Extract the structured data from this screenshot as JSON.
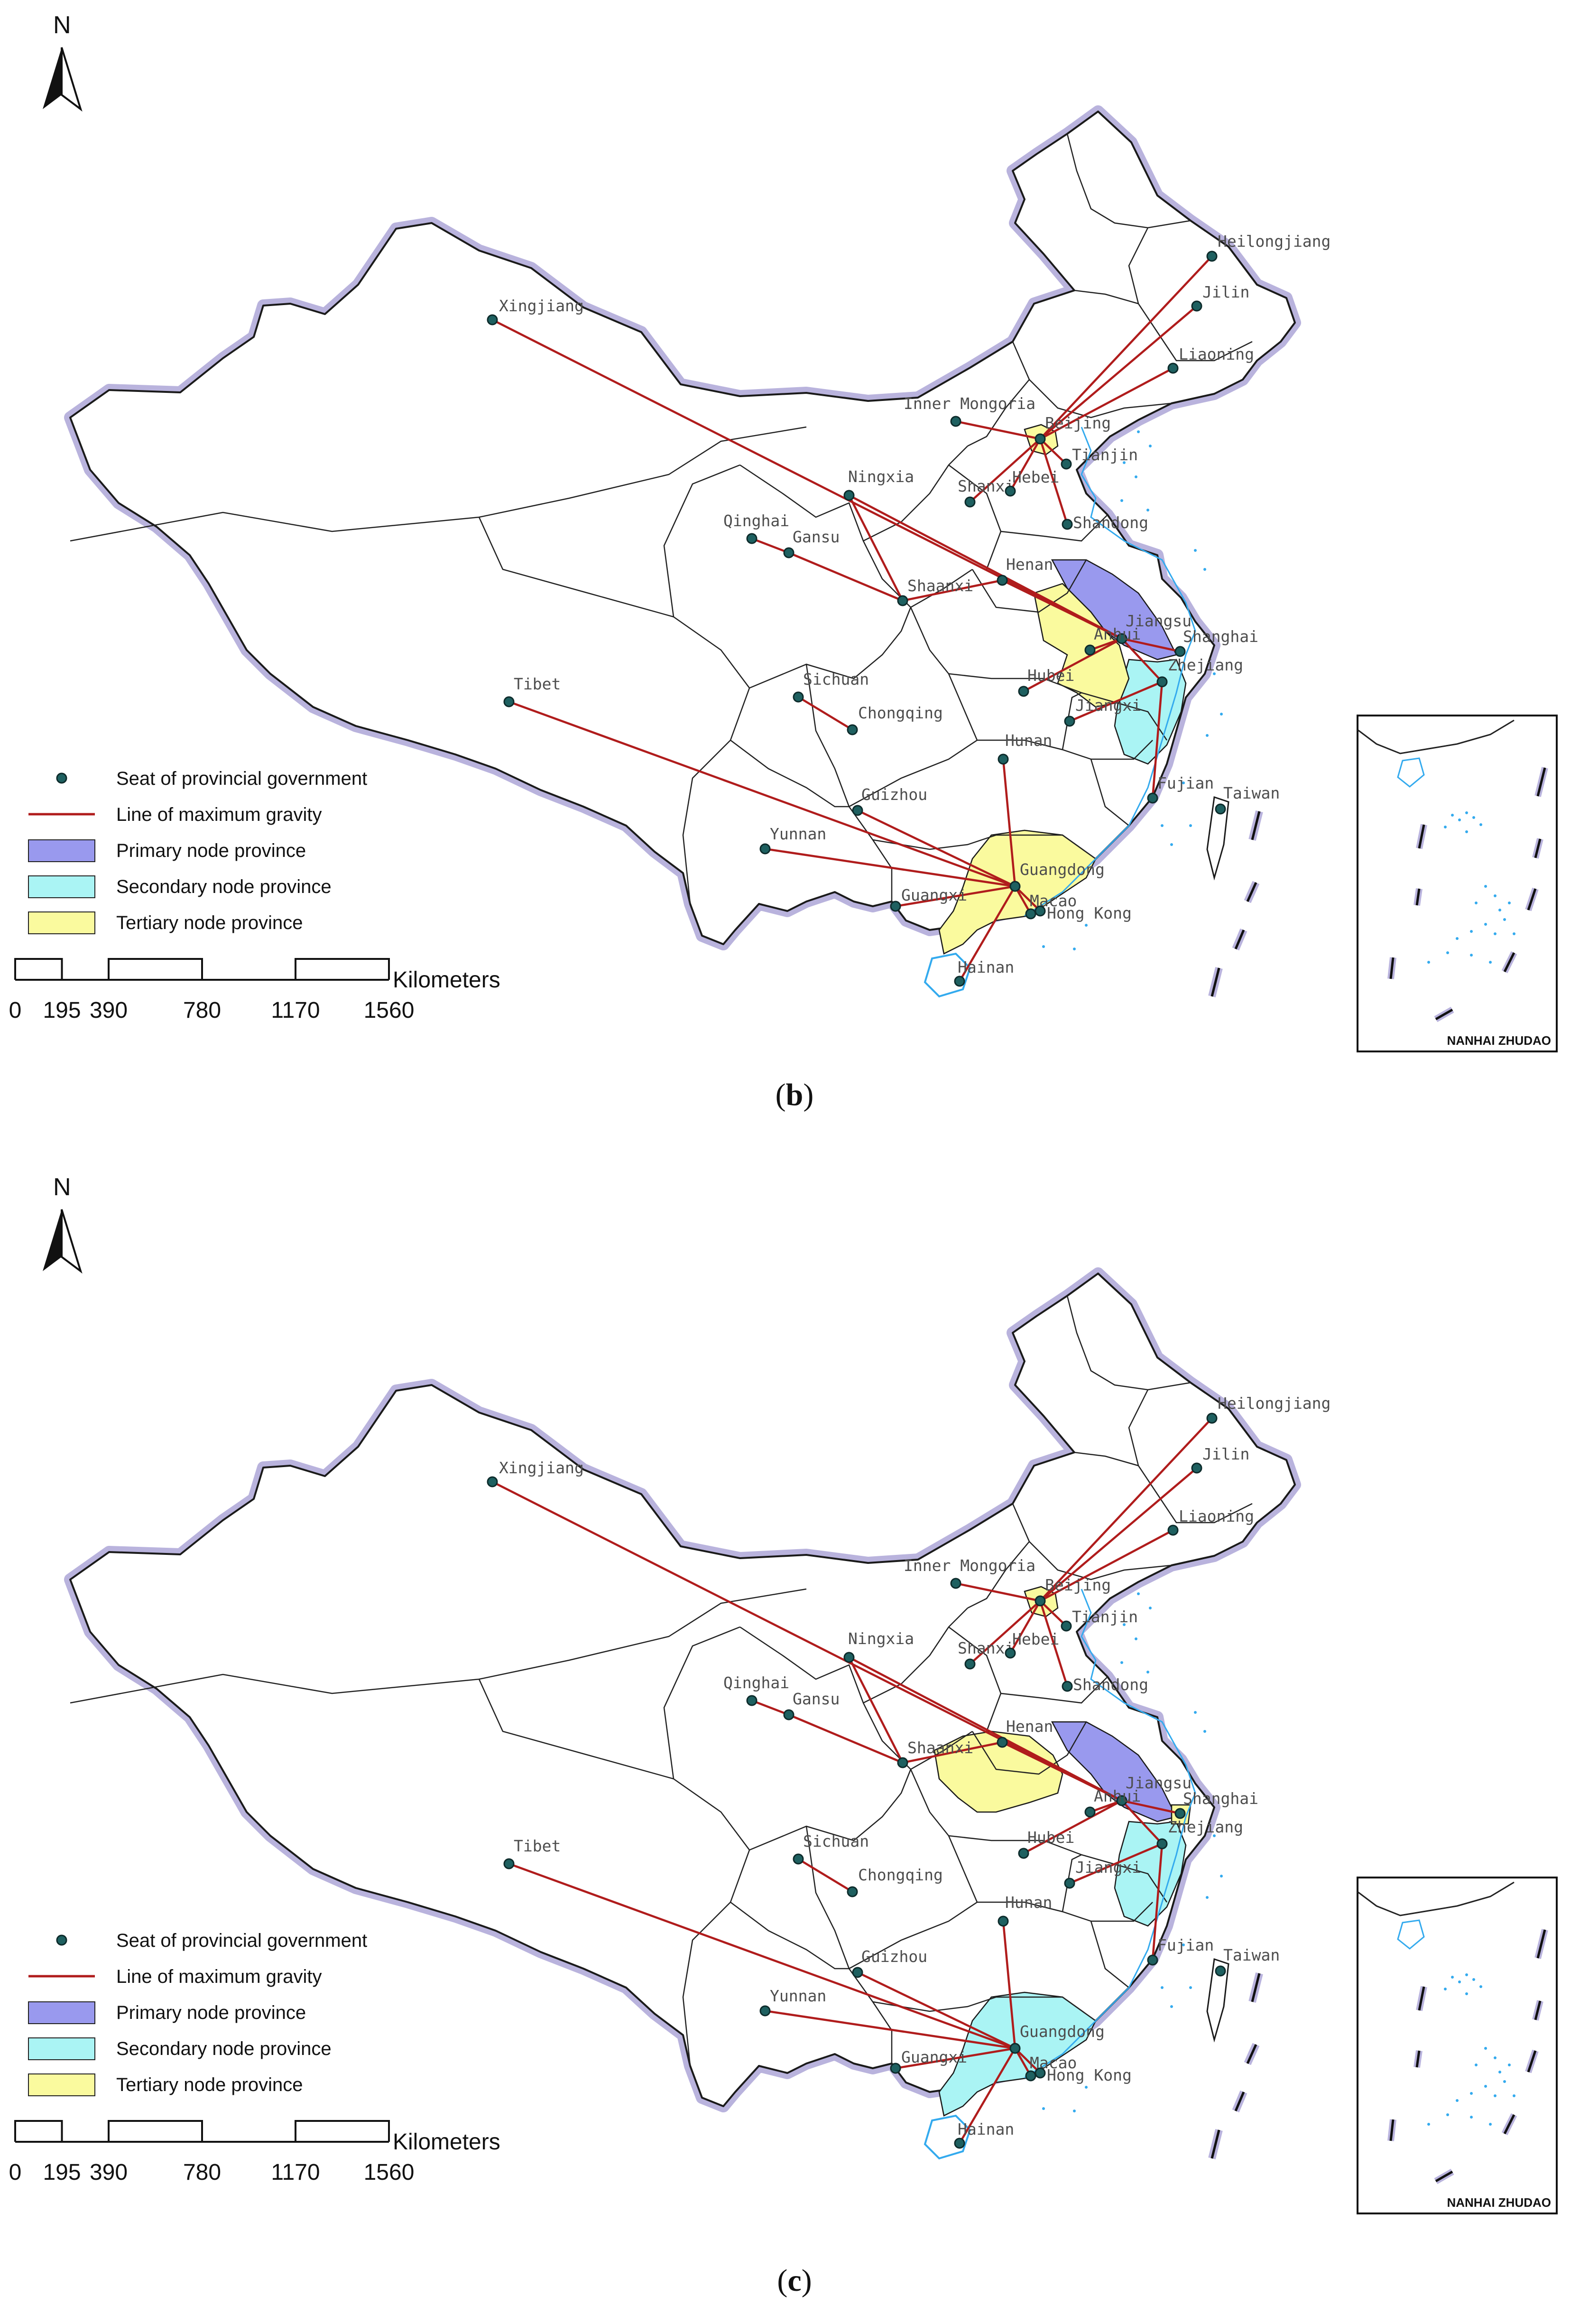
{
  "colors": {
    "primary": "#9999ee",
    "secondary": "#aaf4f4",
    "tertiary": "#fafa9e",
    "line": "#b01c1c",
    "seat": "#1e6060",
    "border_glow": "#b9b3dd",
    "water": "#33aaee"
  },
  "legend": {
    "seat": "Seat of provincial government",
    "line": "Line of maximum gravity",
    "primary": "Primary node province",
    "secondary": "Secondary node province",
    "tertiary": "Tertiary node province"
  },
  "north_label": "N",
  "scale": {
    "unit": "Kilometers",
    "ticks": [
      "0",
      "195",
      "390",
      "780",
      "1170",
      "1560"
    ]
  },
  "inset_label": "NANHAI ZHUDAO",
  "panels": [
    {
      "caption_open": "(",
      "caption_letter": "b",
      "caption_close": ")",
      "primary": [
        "Jiangsu"
      ],
      "secondary": [
        "Zhejiang"
      ],
      "tertiary": [
        "Beijing",
        "Anhui",
        "Guangdong"
      ],
      "links": [
        [
          "Heilongjiang",
          "Beijing"
        ],
        [
          "Jilin",
          "Beijing"
        ],
        [
          "Liaoning",
          "Beijing"
        ],
        [
          "Inner Mongoria",
          "Beijing"
        ],
        [
          "Tianjin",
          "Beijing"
        ],
        [
          "Hebei",
          "Beijing"
        ],
        [
          "Shanxi",
          "Beijing"
        ],
        [
          "Shandong",
          "Beijing"
        ],
        [
          "Xingjiang",
          "Jiangsu"
        ],
        [
          "Ningxia",
          "Shaanxi"
        ],
        [
          "Qinghai",
          "Gansu"
        ],
        [
          "Gansu",
          "Shaanxi"
        ],
        [
          "Shaanxi",
          "Henan"
        ],
        [
          "Henan",
          "Jiangsu"
        ],
        [
          "Anhui",
          "Jiangsu"
        ],
        [
          "Hubei",
          "Jiangsu"
        ],
        [
          "Shanghai",
          "Jiangsu"
        ],
        [
          "Zhejiang",
          "Jiangsu"
        ],
        [
          "Jiangxi",
          "Zhejiang"
        ],
        [
          "Fujian",
          "Zhejiang"
        ],
        [
          "Sichuan",
          "Chongqing"
        ],
        [
          "Tibet",
          "Guangdong"
        ],
        [
          "Yunnan",
          "Guangdong"
        ],
        [
          "Guizhou",
          "Guangdong"
        ],
        [
          "Guangxi",
          "Guangdong"
        ],
        [
          "Hunan",
          "Guangdong"
        ],
        [
          "Hainan",
          "Guangdong"
        ],
        [
          "Hong Kong",
          "Guangdong"
        ],
        [
          "Macao",
          "Guangdong"
        ],
        [
          "Ningxia",
          "Jiangsu"
        ]
      ]
    },
    {
      "caption_open": "(",
      "caption_letter": "c",
      "caption_close": ")",
      "primary": [
        "Jiangsu"
      ],
      "secondary": [
        "Zhejiang",
        "Guangdong"
      ],
      "tertiary": [
        "Beijing",
        "Henan",
        "Shanghai"
      ],
      "links": [
        [
          "Heilongjiang",
          "Beijing"
        ],
        [
          "Jilin",
          "Beijing"
        ],
        [
          "Liaoning",
          "Beijing"
        ],
        [
          "Inner Mongoria",
          "Beijing"
        ],
        [
          "Tianjin",
          "Beijing"
        ],
        [
          "Hebei",
          "Beijing"
        ],
        [
          "Shanxi",
          "Beijing"
        ],
        [
          "Shandong",
          "Beijing"
        ],
        [
          "Xingjiang",
          "Jiangsu"
        ],
        [
          "Ningxia",
          "Shaanxi"
        ],
        [
          "Qinghai",
          "Gansu"
        ],
        [
          "Gansu",
          "Shaanxi"
        ],
        [
          "Shaanxi",
          "Henan"
        ],
        [
          "Henan",
          "Jiangsu"
        ],
        [
          "Anhui",
          "Jiangsu"
        ],
        [
          "Hubei",
          "Jiangsu"
        ],
        [
          "Shanghai",
          "Jiangsu"
        ],
        [
          "Zhejiang",
          "Jiangsu"
        ],
        [
          "Jiangxi",
          "Zhejiang"
        ],
        [
          "Fujian",
          "Zhejiang"
        ],
        [
          "Sichuan",
          "Chongqing"
        ],
        [
          "Tibet",
          "Guangdong"
        ],
        [
          "Yunnan",
          "Guangdong"
        ],
        [
          "Guizhou",
          "Guangdong"
        ],
        [
          "Guangxi",
          "Guangdong"
        ],
        [
          "Hunan",
          "Guangdong"
        ],
        [
          "Hainan",
          "Guangdong"
        ],
        [
          "Hong Kong",
          "Guangdong"
        ],
        [
          "Macao",
          "Guangdong"
        ],
        [
          "Ningxia",
          "Jiangsu"
        ]
      ]
    }
  ],
  "cities": [
    "Heilongjiang",
    "Jilin",
    "Liaoning",
    "Xingjiang",
    "Inner Mongoria",
    "Beijing",
    "Tianjin",
    "Ningxia",
    "Shanxi",
    "Hebei",
    "Shandong",
    "Qinghai",
    "Gansu",
    "Shaanxi",
    "Henan",
    "Jiangsu",
    "Shanghai",
    "Anhui",
    "Hubei",
    "Zhejiang",
    "Tibet",
    "Sichuan",
    "Chongqing",
    "Jiangxi",
    "Hunan",
    "Fujian",
    "Taiwan",
    "Guizhou",
    "Yunnan",
    "Guangdong",
    "Guangxi",
    "Macao",
    "Hong Kong",
    "Hainan"
  ]
}
